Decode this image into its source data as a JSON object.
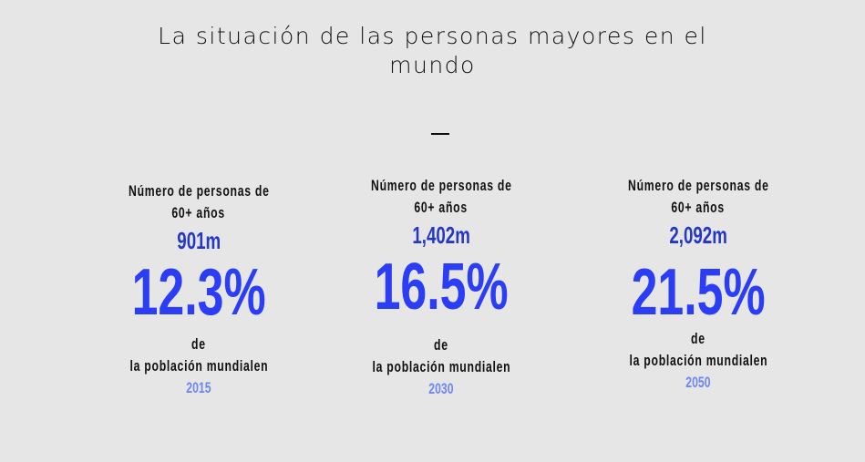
{
  "title": "La situación de las personas mayores en el mundo",
  "stats": [
    {
      "heading_line1": "Número de personas de",
      "heading_line2": "60+ años",
      "count": "901m",
      "percent": "12.3%",
      "de": "de",
      "population_label": "la población mundialen",
      "year": "2015"
    },
    {
      "heading_line1": "Número de personas de",
      "heading_line2": "60+ años",
      "count": "1,402m",
      "percent": "16.5%",
      "de": "de",
      "population_label": "la población mundialen",
      "year": "2030"
    },
    {
      "heading_line1": "Número de personas de",
      "heading_line2": "60+ años",
      "count": "2,092m",
      "percent": "21.5%",
      "de": "de",
      "population_label": "la población mundialen",
      "year": "2050"
    }
  ],
  "colors": {
    "background": "#e6e6e6",
    "count": "#2637c4",
    "percent": "#2b3df5",
    "year": "#6f87f2"
  }
}
